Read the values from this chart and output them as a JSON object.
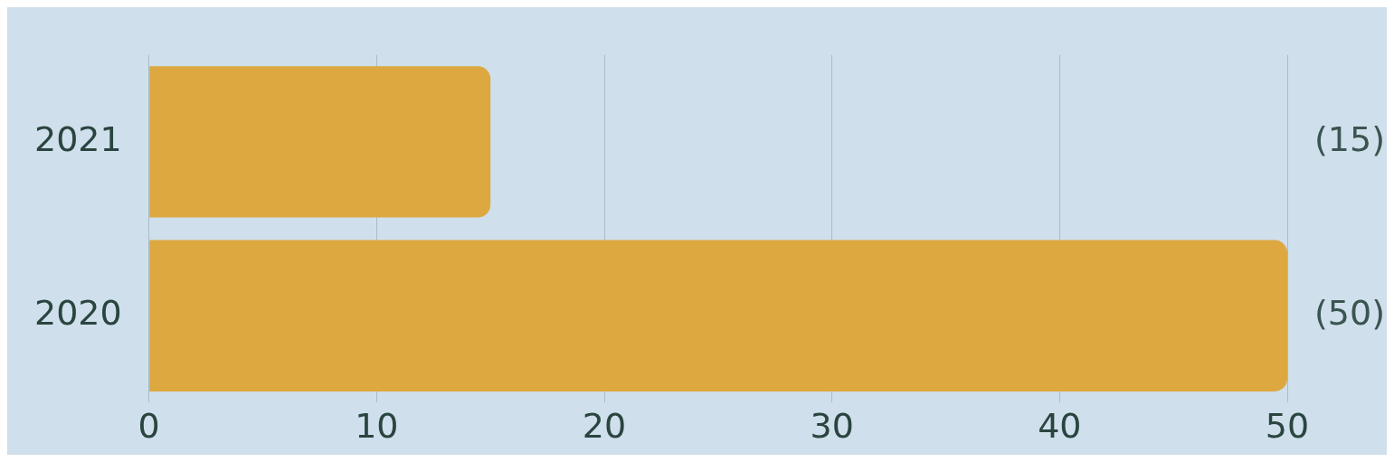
{
  "chart_data": {
    "type": "bar",
    "orientation": "horizontal",
    "categories": [
      "2021",
      "2020"
    ],
    "values": [
      15,
      50
    ],
    "color": "#dda840",
    "value_labels": [
      "(15)",
      "(50)"
    ],
    "xlim": [
      0,
      50
    ],
    "xticks": [
      0,
      10,
      20,
      30,
      40,
      50
    ],
    "grid": "x",
    "legend": false
  }
}
